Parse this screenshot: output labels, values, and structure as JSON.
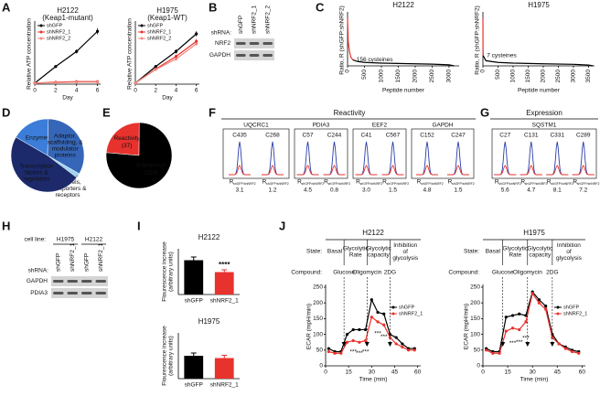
{
  "figure": {
    "letters": [
      "A",
      "B",
      "C",
      "D",
      "E",
      "F",
      "G",
      "H",
      "I",
      "J"
    ],
    "B": {
      "lane_header": "shRNA:",
      "lanes": [
        "shGFP",
        "shNRF2_1",
        "shNRF2_2"
      ],
      "bands": [
        "NRF2",
        "GAPDH"
      ]
    },
    "F": {
      "title": "Reactivity",
      "r_label": "R",
      "r_sub": "shGFP/shNRF2",
      "proteins": [
        {
          "name": "UQCRC1",
          "sites": [
            "C435",
            "C268"
          ],
          "ratios": [
            "3.1",
            "1.2"
          ]
        },
        {
          "name": "PDIA3",
          "sites": [
            "C57",
            "C244"
          ],
          "ratios": [
            "4.5",
            "0.8"
          ]
        },
        {
          "name": "EEF2",
          "sites": [
            "C41",
            "C567"
          ],
          "ratios": [
            "3.0",
            "1.5"
          ]
        },
        {
          "name": "GAPDH",
          "sites": [
            "C152",
            "C247"
          ],
          "ratios": [
            "4.8",
            "1.5"
          ]
        }
      ]
    },
    "G": {
      "title": "Expression",
      "r_label": "R",
      "r_sub": "shGFP/shNRF2",
      "proteins": [
        {
          "name": "SQSTM1",
          "sites": [
            "C27",
            "C131",
            "C331",
            "C289"
          ],
          "ratios": [
            "5.6",
            "4.7",
            "8.1",
            "7.2"
          ]
        }
      ]
    },
    "H": {
      "cell_line_label": "cell line:",
      "cell_lines": [
        "H1975",
        "H2122"
      ],
      "lane_header": "shRNA:",
      "lanes": [
        "shGFP",
        "shNRF2_1",
        "shGFP",
        "shNRF2_1"
      ],
      "bands": [
        "GAPDH",
        "PDIA3"
      ]
    }
  },
  "chart_data": [
    {
      "type": "line",
      "title": "H2122 (Keap1-mutant)",
      "x_label": "Day",
      "y_label": "Relative ATP concentration",
      "x": [
        0,
        2,
        4,
        6
      ],
      "xlim": [
        0,
        6.3
      ],
      "xticks": [
        0,
        2,
        4,
        6
      ],
      "ylim": [
        0,
        1.2
      ],
      "markers": true,
      "legend": "upper left",
      "series": [
        {
          "name": "shGFP",
          "color": "#000000",
          "values": [
            0.02,
            0.35,
            0.65,
            1.05
          ],
          "errors": [
            0.01,
            0.02,
            0.04,
            0.06
          ]
        },
        {
          "name": "shNRF2_1",
          "color": "#e8322d",
          "values": [
            0.02,
            0.04,
            0.05,
            0.05
          ]
        },
        {
          "name": "shNRF2_2",
          "color": "#f08a80",
          "values": [
            0.02,
            0.03,
            0.04,
            0.04
          ]
        }
      ]
    },
    {
      "type": "line",
      "title": "H1975 (Keap1-WT)",
      "x_label": "Day",
      "y_label": "Relative ATP concentration",
      "x": [
        0,
        2,
        4,
        6
      ],
      "xlim": [
        0,
        6.3
      ],
      "xticks": [
        0,
        2,
        4,
        6
      ],
      "ylim": [
        0,
        1.2
      ],
      "markers": true,
      "legend": "upper left",
      "series": [
        {
          "name": "shGFP",
          "color": "#000000",
          "values": [
            0.02,
            0.35,
            0.65,
            1.0
          ],
          "errors": [
            0.01,
            0.03,
            0.04,
            0.05
          ]
        },
        {
          "name": "shNRF2_1",
          "color": "#e8322d",
          "values": [
            0.02,
            0.3,
            0.55,
            0.85
          ],
          "errors": [
            0.01,
            0.03,
            0.04,
            0.05
          ]
        },
        {
          "name": "shNRF2_2",
          "color": "#f08a80",
          "values": [
            0.02,
            0.29,
            0.5,
            0.8
          ]
        }
      ]
    },
    {
      "type": "line",
      "title": "H2122",
      "x_label": "Peptide number",
      "y_label": "Ratio, R (shGFP:shNRF2)",
      "xlim": [
        0,
        3300
      ],
      "xticks": [
        0,
        500,
        1000,
        1500,
        2000,
        2500,
        3000
      ],
      "ylim": [
        0,
        30
      ],
      "series": [
        {
          "color": "#e8322d",
          "x": [
            0,
            20,
            60,
            100,
            156
          ],
          "values": [
            28,
            14,
            8,
            5,
            3.5
          ]
        },
        {
          "color": "#000000",
          "x": [
            156,
            300,
            500,
            1000,
            1500,
            2000,
            2500,
            3000,
            3150
          ],
          "values": [
            3.5,
            2.5,
            2,
            1.6,
            1.4,
            1.2,
            1,
            0.6,
            0
          ]
        }
      ],
      "annotations": [
        {
          "text": "156 cysteines",
          "x": 156,
          "y": 3.5,
          "color": "#e8322d"
        }
      ]
    },
    {
      "type": "line",
      "title": "H1975",
      "x_label": "Peptide number",
      "y_label": "Ratio, R (shGFP:shNRF2)",
      "xlim": [
        0,
        3700
      ],
      "xticks": [
        0,
        500,
        1000,
        1500,
        2000,
        2500,
        3000,
        3500
      ],
      "ylim": [
        0,
        30
      ],
      "series": [
        {
          "color": "#e8322d",
          "x": [
            0,
            3,
            7
          ],
          "values": [
            28,
            12,
            6
          ]
        },
        {
          "color": "#000000",
          "x": [
            7,
            100,
            500,
            1000,
            2000,
            3000,
            3500,
            3650
          ],
          "values": [
            6,
            3,
            2,
            1.6,
            1.2,
            0.9,
            0.5,
            0
          ]
        }
      ],
      "annotations": [
        {
          "text": "7 cysteines",
          "x": 7,
          "y": 6,
          "color": "#e8322d"
        }
      ]
    },
    {
      "type": "pie",
      "categories": [
        "Enzymes",
        "Adaptor, scaffolding, & modulator proteins",
        "Channels, transporters & receptors",
        "Transcription factors & regulators"
      ],
      "values": [
        17,
        33,
        2,
        48
      ],
      "colors": [
        "#3b7dd8",
        "#3566b8",
        "#9fd3ef",
        "#1c2a6b"
      ]
    },
    {
      "type": "pie",
      "categories": [
        "Reactivity",
        "Expression"
      ],
      "values": [
        37,
        119
      ],
      "value_labels": [
        "(37)",
        "(119)"
      ],
      "colors": [
        "#e8322d",
        "#000000"
      ]
    },
    {
      "type": "bar",
      "title": "H2122",
      "y_label": "Flourescence increase (arbitrary units)",
      "categories": [
        "shGFP",
        "shNRF2_1"
      ],
      "values": [
        375,
        245
      ],
      "errors": [
        35,
        25
      ],
      "colors": [
        "#000000",
        "#e8322d"
      ],
      "ylim": [
        0,
        500
      ],
      "annotations": [
        {
          "text": "****",
          "category": "shNRF2_1",
          "color": "#e8322d"
        }
      ]
    },
    {
      "type": "bar",
      "title": "H1975",
      "y_label": "Flourescence increase (arbitrary units)",
      "categories": [
        "shGFP",
        "shNRF2_1"
      ],
      "values": [
        250,
        225
      ],
      "errors": [
        30,
        30
      ],
      "colors": [
        "#000000",
        "#e8322d"
      ],
      "ylim": [
        0,
        500
      ]
    },
    {
      "type": "line",
      "title": "H2122",
      "x_label": "Time (min)",
      "y_label": "ECAR (mpH/min)",
      "state_label": "State:",
      "states": [
        "Basal",
        "Glycolytic Rate",
        "Glycolytic capacity",
        "Inhibition of glycolysis"
      ],
      "compound_label": "Compound:",
      "compounds": [
        {
          "name": "Glucose",
          "time": 12
        },
        {
          "name": "Oligomycin",
          "time": 27
        },
        {
          "name": "2DG",
          "time": 42
        }
      ],
      "x": [
        2,
        6,
        10,
        14,
        18,
        22,
        26,
        30,
        34,
        38,
        42,
        46,
        50,
        54,
        58
      ],
      "xlim": [
        0,
        62
      ],
      "xticks": [
        0,
        15,
        30,
        45,
        60
      ],
      "ylim": [
        0,
        250
      ],
      "yticks": [
        0,
        50,
        100,
        150,
        200,
        250
      ],
      "markers": true,
      "legend": "center right",
      "series": [
        {
          "name": "shGFP",
          "color": "#000000",
          "values": [
            55,
            45,
            45,
            100,
            115,
            115,
            115,
            210,
            170,
            165,
            100,
            90,
            70,
            55,
            55
          ]
        },
        {
          "name": "shNRF2_1",
          "color": "#e8322d",
          "values": [
            45,
            40,
            40,
            75,
            80,
            75,
            80,
            155,
            140,
            130,
            90,
            70,
            60,
            50,
            50
          ]
        }
      ],
      "annotations": [
        {
          "text": "***",
          "x": 18,
          "y": 62,
          "color": "#e8322d"
        },
        {
          "text": "***",
          "x": 22,
          "y": 58,
          "color": "#e8322d"
        },
        {
          "text": "***",
          "x": 26,
          "y": 62,
          "color": "#e8322d"
        },
        {
          "text": "***",
          "x": 34,
          "y": 120,
          "color": "#e8322d"
        },
        {
          "text": "***",
          "x": 38,
          "y": 110,
          "color": "#e8322d"
        }
      ]
    },
    {
      "type": "line",
      "title": "H1975",
      "x_label": "Time (min)",
      "y_label": "ECAR (mpH/min)",
      "state_label": "State:",
      "states": [
        "Basal",
        "Glycolytic Rate",
        "Glycolytic capacity",
        "Inhibition of glycolysis"
      ],
      "compound_label": "Compound:",
      "compounds": [
        {
          "name": "Glucose",
          "time": 12
        },
        {
          "name": "Oligomycin",
          "time": 27
        },
        {
          "name": "2DG",
          "time": 42
        }
      ],
      "x": [
        2,
        6,
        10,
        14,
        18,
        22,
        26,
        30,
        34,
        38,
        42,
        46,
        50,
        54,
        58
      ],
      "xlim": [
        0,
        62
      ],
      "xticks": [
        0,
        15,
        30,
        45,
        60
      ],
      "ylim": [
        0,
        250
      ],
      "yticks": [
        0,
        50,
        100,
        150,
        200,
        250
      ],
      "markers": true,
      "legend": "center right",
      "series": [
        {
          "name": "shGFP",
          "color": "#000000",
          "values": [
            55,
            45,
            45,
            155,
            160,
            165,
            160,
            235,
            210,
            190,
            100,
            70,
            60,
            50,
            45
          ]
        },
        {
          "name": "shNRF2_1",
          "color": "#e8322d",
          "values": [
            50,
            40,
            40,
            110,
            120,
            115,
            140,
            230,
            200,
            180,
            90,
            70,
            55,
            45,
            40
          ]
        }
      ],
      "annotations": [
        {
          "text": "***",
          "x": 18,
          "y": 90,
          "color": "#e8322d"
        },
        {
          "text": "***",
          "x": 22,
          "y": 92,
          "color": "#e8322d"
        },
        {
          "text": "***",
          "x": 26,
          "y": 105,
          "color": "#e8322d"
        }
      ]
    }
  ]
}
